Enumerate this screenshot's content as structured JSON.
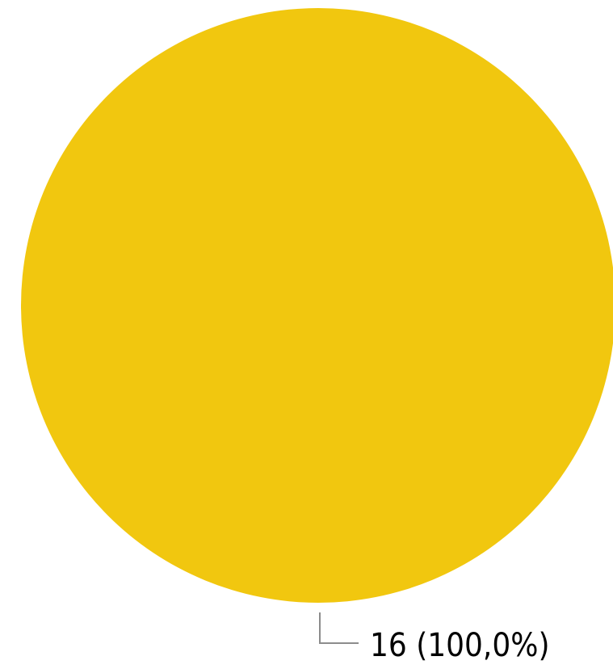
{
  "chart_data": {
    "type": "pie",
    "title": "",
    "slices": [
      {
        "value": 16,
        "percent": 100.0,
        "label": "16 (100,0%)",
        "color": "#F1C70F"
      }
    ],
    "leader_line_color": "#8C8C8C",
    "legend": "none"
  }
}
